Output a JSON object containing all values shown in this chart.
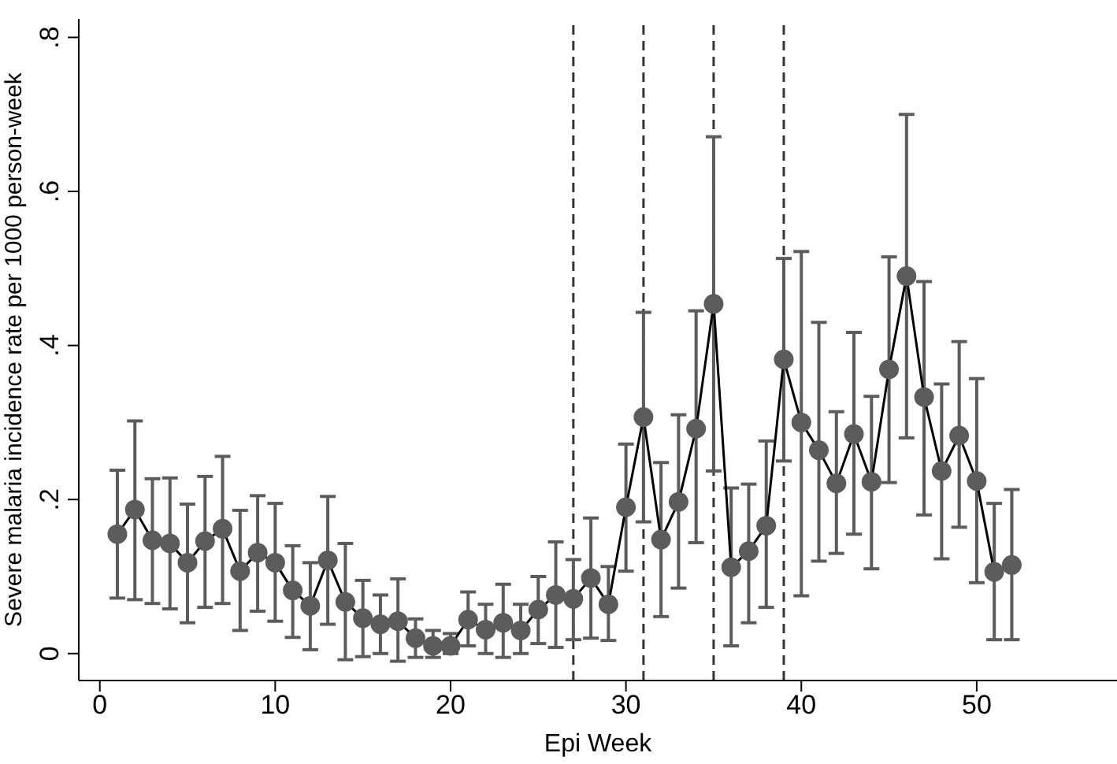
{
  "chart_data": {
    "type": "line",
    "xlabel": "Epi Week",
    "ylabel": "Severe malaria incidence rate per 1000 person-week",
    "x": [
      1,
      2,
      3,
      4,
      5,
      6,
      7,
      8,
      9,
      10,
      11,
      12,
      13,
      14,
      15,
      16,
      17,
      18,
      19,
      20,
      21,
      22,
      23,
      24,
      25,
      26,
      27,
      28,
      29,
      30,
      31,
      32,
      33,
      34,
      35,
      36,
      37,
      38,
      39,
      40,
      41,
      42,
      43,
      44,
      45,
      46,
      47,
      48,
      49,
      50,
      51,
      52
    ],
    "series": [
      {
        "color": "#5c5c5c",
        "values": [
          0.155,
          0.187,
          0.147,
          0.143,
          0.118,
          0.146,
          0.162,
          0.107,
          0.131,
          0.118,
          0.082,
          0.062,
          0.121,
          0.067,
          0.046,
          0.038,
          0.042,
          0.02,
          0.01,
          0.01,
          0.044,
          0.031,
          0.04,
          0.03,
          0.057,
          0.076,
          0.071,
          0.098,
          0.064,
          0.19,
          0.307,
          0.148,
          0.197,
          0.292,
          0.454,
          0.112,
          0.133,
          0.166,
          0.382,
          0.3,
          0.264,
          0.221,
          0.285,
          0.223,
          0.369,
          0.49,
          0.333,
          0.237,
          0.283,
          0.224,
          0.106,
          0.115
        ],
        "errors": [
          [
            0.072,
            0.238
          ],
          [
            0.07,
            0.302
          ],
          [
            0.065,
            0.227
          ],
          [
            0.058,
            0.228
          ],
          [
            0.04,
            0.194
          ],
          [
            0.06,
            0.23
          ],
          [
            0.065,
            0.256
          ],
          [
            0.03,
            0.186
          ],
          [
            0.055,
            0.205
          ],
          [
            0.042,
            0.195
          ],
          [
            0.021,
            0.14
          ],
          [
            0.005,
            0.118
          ],
          [
            0.038,
            0.204
          ],
          [
            -0.008,
            0.143
          ],
          [
            -0.004,
            0.095
          ],
          [
            0.0,
            0.076
          ],
          [
            -0.01,
            0.097
          ],
          [
            -0.005,
            0.045
          ],
          [
            -0.005,
            0.03
          ],
          [
            0.0,
            0.026
          ],
          [
            0.01,
            0.08
          ],
          [
            0.0,
            0.064
          ],
          [
            -0.005,
            0.09
          ],
          [
            0.0,
            0.064
          ],
          [
            0.013,
            0.1
          ],
          [
            0.008,
            0.145
          ],
          [
            0.018,
            0.122
          ],
          [
            0.02,
            0.176
          ],
          [
            0.017,
            0.113
          ],
          [
            0.107,
            0.272
          ],
          [
            0.171,
            0.443
          ],
          [
            0.048,
            0.248
          ],
          [
            0.085,
            0.31
          ],
          [
            0.144,
            0.445
          ],
          [
            0.237,
            0.671
          ],
          [
            0.01,
            0.215
          ],
          [
            0.04,
            0.22
          ],
          [
            0.06,
            0.276
          ],
          [
            0.25,
            0.513
          ],
          [
            0.075,
            0.522
          ],
          [
            0.12,
            0.43
          ],
          [
            0.13,
            0.314
          ],
          [
            0.155,
            0.417
          ],
          [
            0.11,
            0.334
          ],
          [
            0.222,
            0.515
          ],
          [
            0.28,
            0.7
          ],
          [
            0.18,
            0.483
          ],
          [
            0.123,
            0.35
          ],
          [
            0.164,
            0.405
          ],
          [
            0.092,
            0.357
          ],
          [
            0.018,
            0.195
          ],
          [
            0.018,
            0.213
          ]
        ]
      }
    ],
    "xlim": [
      -1.2,
      58
    ],
    "xticks": [
      0,
      10,
      20,
      30,
      40,
      50
    ],
    "ylim": [
      -0.035,
      0.824
    ],
    "yticks": [
      0,
      {
        "value": 0.2,
        "label": ".2"
      },
      {
        "value": 0.4,
        "label": ".4"
      },
      {
        "value": 0.6,
        "label": ".6"
      },
      {
        "value": 0.8,
        "label": ".8"
      }
    ],
    "ref_lines": [
      {
        "axis": "x",
        "value": 27,
        "color": "#333333",
        "line_style": "dashed"
      },
      {
        "axis": "x",
        "value": 31,
        "color": "#333333",
        "line_style": "dashed"
      },
      {
        "axis": "x",
        "value": 35,
        "color": "#333333",
        "line_style": "dashed"
      },
      {
        "axis": "x",
        "value": 39,
        "color": "#333333",
        "line_style": "dashed"
      }
    ],
    "marker": "circle",
    "line_style": "solid",
    "grid": false,
    "legend": false
  }
}
